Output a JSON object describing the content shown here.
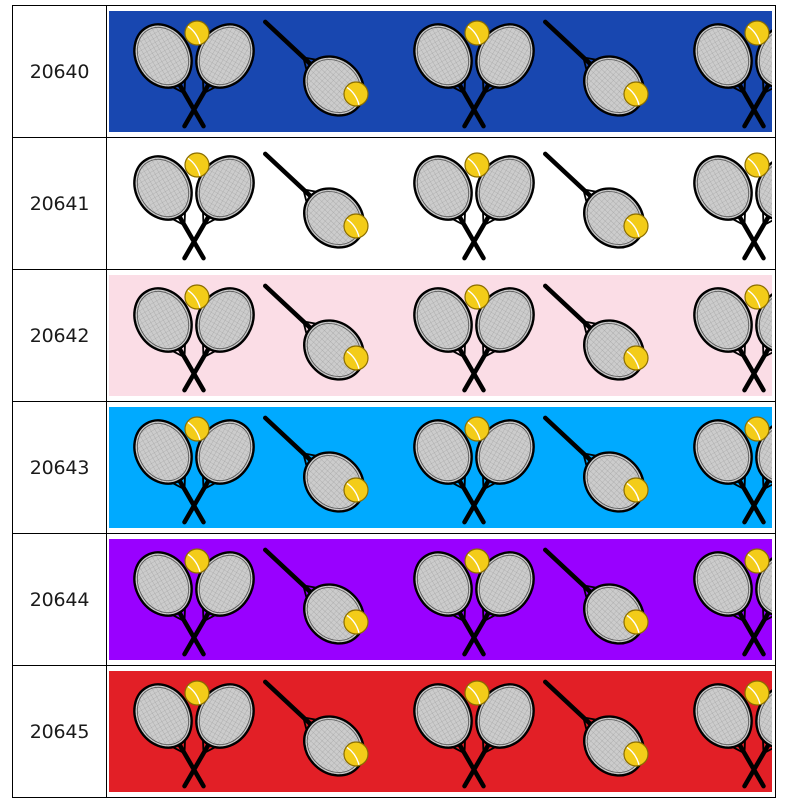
{
  "swatches": [
    {
      "code": "20640",
      "background": "#1847b0"
    },
    {
      "code": "20641",
      "background": "#ffffff"
    },
    {
      "code": "20642",
      "background": "#fbdde6"
    },
    {
      "code": "20643",
      "background": "#00aaff"
    },
    {
      "code": "20644",
      "background": "#9900ff"
    },
    {
      "code": "20645",
      "background": "#e21f26"
    }
  ],
  "motif": {
    "icons": [
      "crossed-rackets-with-ball-icon",
      "single-racket-with-ball-icon"
    ],
    "racket_string_color": "#cccccc",
    "racket_frame_color": "#000000",
    "ball_color": "#f3cc19"
  }
}
